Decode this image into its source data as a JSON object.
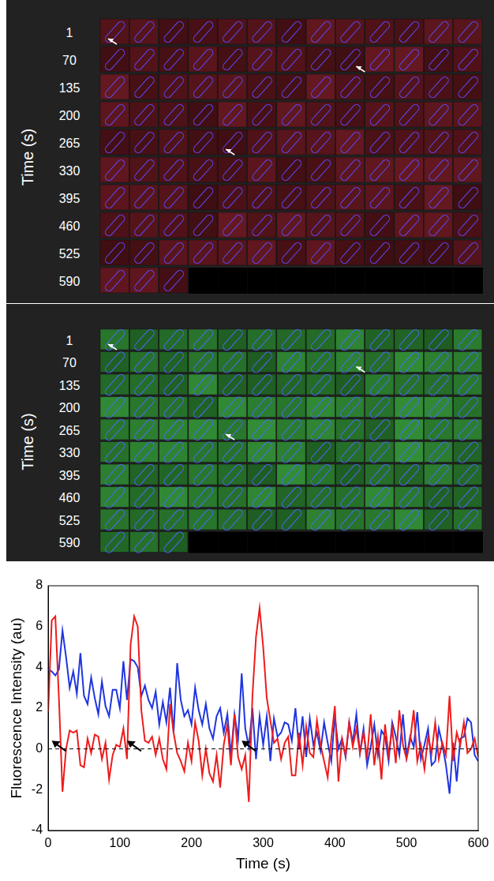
{
  "montages": [
    {
      "color": "red",
      "y_label": "Time (s)",
      "row_labels": [
        1,
        70,
        135,
        200,
        265,
        330,
        395,
        460,
        525,
        590
      ]
    },
    {
      "color": "green",
      "y_label": "Time (s)",
      "row_labels": [
        1,
        70,
        135,
        200,
        265,
        330,
        395,
        460,
        525,
        590
      ]
    }
  ],
  "chart_data": {
    "type": "line",
    "x_label": "Time (s)",
    "y_label": "Fluorescence Intensity (au)",
    "x": [
      0,
      5,
      10,
      15,
      20,
      25,
      30,
      35,
      40,
      45,
      50,
      55,
      60,
      65,
      70,
      75,
      80,
      85,
      90,
      95,
      100,
      105,
      110,
      115,
      120,
      125,
      130,
      135,
      140,
      145,
      150,
      155,
      160,
      165,
      170,
      175,
      180,
      185,
      190,
      195,
      200,
      205,
      210,
      215,
      220,
      225,
      230,
      235,
      240,
      245,
      250,
      255,
      260,
      265,
      270,
      275,
      280,
      285,
      290,
      295,
      300,
      305,
      310,
      315,
      320,
      325,
      330,
      335,
      340,
      345,
      350,
      355,
      360,
      365,
      370,
      375,
      380,
      385,
      390,
      395,
      400,
      405,
      410,
      415,
      420,
      425,
      430,
      435,
      440,
      445,
      450,
      455,
      460,
      465,
      470,
      475,
      480,
      485,
      490,
      495,
      500,
      505,
      510,
      515,
      520,
      525,
      530,
      535,
      540,
      545,
      550,
      555,
      560,
      565,
      570,
      575,
      580,
      585,
      590,
      595,
      600
    ],
    "series": [
      {
        "color": "#ee1c1c",
        "values": [
          1.8,
          6.3,
          6.5,
          2.5,
          -2.1,
          0,
          0.9,
          0.8,
          0.9,
          -0.8,
          -0.9,
          0.5,
          -0.2,
          0.7,
          0.6,
          -0.5,
          0.3,
          -1.5,
          -0.3,
          0.2,
          0.1,
          1.0,
          -0.5,
          5.1,
          6.5,
          6.0,
          1.9,
          0.4,
          0.3,
          0.6,
          -0.3,
          0.5,
          -0.5,
          -1.0,
          2.2,
          0.8,
          -0.2,
          -0.6,
          -1.1,
          0.3,
          -0.6,
          1.3,
          0.4,
          -1.3,
          0.0,
          -1.2,
          -1.6,
          -0.3,
          -1.9,
          0.2,
          1.2,
          -0.8,
          1.7,
          -0.4,
          -1.0,
          -0.3,
          -2.6,
          2.6,
          5.5,
          6.9,
          5.0,
          2.5,
          1.4,
          0.3,
          0.5,
          -0.5,
          0.3,
          0.6,
          -1.3,
          -1.3,
          0.8,
          -0.8,
          1.1,
          -0.2,
          -0.4,
          1.4,
          0.2,
          -0.6,
          -1.4,
          0.5,
          2.1,
          -1.6,
          0.5,
          -0.3,
          1.3,
          0.1,
          1.0,
          -0.2,
          0.8,
          -0.4,
          1.7,
          -0.8,
          0.6,
          -1.5,
          1.2,
          -0.3,
          1.0,
          -0.7,
          1.9,
          0.2,
          -0.5,
          0.4,
          1.9,
          -0.6,
          0.2,
          -1.0,
          0.6,
          -0.2,
          1.3,
          -0.5,
          0.3,
          -0.3,
          2.6,
          -0.6,
          0.8,
          0.2,
          1.3,
          -0.2,
          0.0,
          0.5,
          -0.4
        ]
      },
      {
        "color": "#1f35e0",
        "values": [
          3.9,
          3.8,
          3.6,
          3.9,
          5.8,
          4.5,
          3.0,
          3.8,
          2.7,
          4.7,
          2.6,
          2.2,
          3.5,
          2.5,
          1.7,
          3.3,
          2.1,
          1.6,
          2.9,
          2.9,
          2.0,
          4.3,
          2.4,
          4.4,
          4.3,
          4.0,
          2.6,
          3.1,
          2.4,
          2.0,
          2.8,
          1.2,
          2.3,
          1.3,
          3.0,
          0.8,
          4.2,
          2.4,
          1.6,
          1.9,
          1.2,
          3.0,
          1.9,
          1.2,
          2.2,
          1.0,
          0.5,
          1.6,
          2.0,
          0.8,
          1.7,
          -0.3,
          1.7,
          0.5,
          3.7,
          1.0,
          0.1,
          2.0,
          -0.5,
          1.6,
          0.2,
          1.6,
          -0.6,
          1.5,
          0.6,
          0.8,
          1.3,
          1.2,
          0.4,
          2.0,
          0.0,
          1.6,
          -0.4,
          1.5,
          0.2,
          0.8,
          -0.1,
          1.3,
          0.3,
          -0.6,
          1.6,
          0.0,
          0.5,
          -0.4,
          1.3,
          0.3,
          1.7,
          -0.2,
          1.0,
          -0.8,
          0.1,
          1.2,
          -0.3,
          0.9,
          0.6,
          -0.6,
          1.3,
          0.6,
          -0.3,
          1.7,
          -0.4,
          0.6,
          0.1,
          1.8,
          -0.5,
          0.2,
          1.0,
          -0.8,
          -0.6,
          1.0,
          0.2,
          -0.8,
          -2.2,
          0.3,
          -1.6,
          0.5,
          0.6,
          1.5,
          1.3,
          -0.3,
          -0.6
        ]
      }
    ],
    "baseline": {
      "value": 0,
      "line_style": "dashed"
    },
    "event_arrows": [
      {
        "x": 5,
        "y": 0.4
      },
      {
        "x": 110,
        "y": 0.4
      },
      {
        "x": 270,
        "y": 0.4
      }
    ],
    "xlim": [
      0,
      600
    ],
    "xticks": [
      0,
      100,
      200,
      300,
      400,
      500,
      600
    ],
    "ylim": [
      -4,
      8
    ],
    "yticks": [
      -4,
      -2,
      0,
      2,
      4,
      6,
      8
    ],
    "grid": false
  }
}
